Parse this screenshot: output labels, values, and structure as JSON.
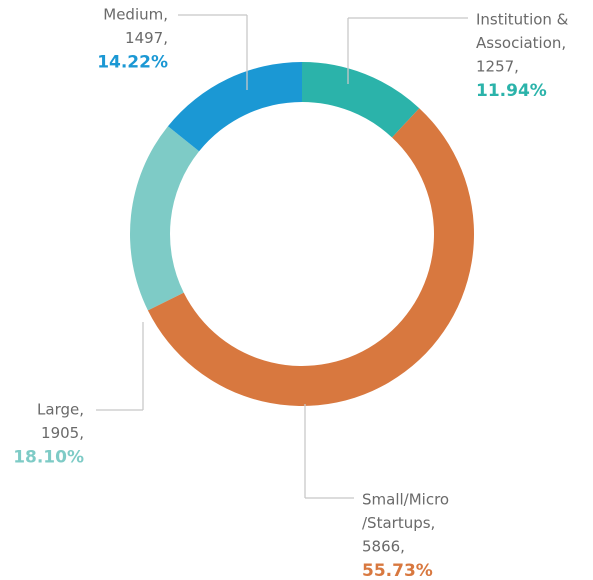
{
  "chart_data": {
    "type": "donut",
    "categories": [
      [
        "Institution &",
        "Association,"
      ],
      [
        "Small/Micro",
        "/Startups,"
      ],
      [
        "Large,"
      ],
      [
        "Medium,"
      ]
    ],
    "values": [
      1257,
      5866,
      1905,
      1497
    ],
    "value_labels": [
      "1257,",
      "5866,",
      "1905,",
      "1497,"
    ],
    "percentages": [
      11.94,
      55.73,
      18.1,
      14.22
    ],
    "percentage_labels": [
      "11.94%",
      "55.73%",
      "18.10%",
      "14.22%"
    ],
    "colors": [
      "#2bb3aa",
      "#d8783f",
      "#7ecbc6",
      "#1b98d4"
    ]
  }
}
